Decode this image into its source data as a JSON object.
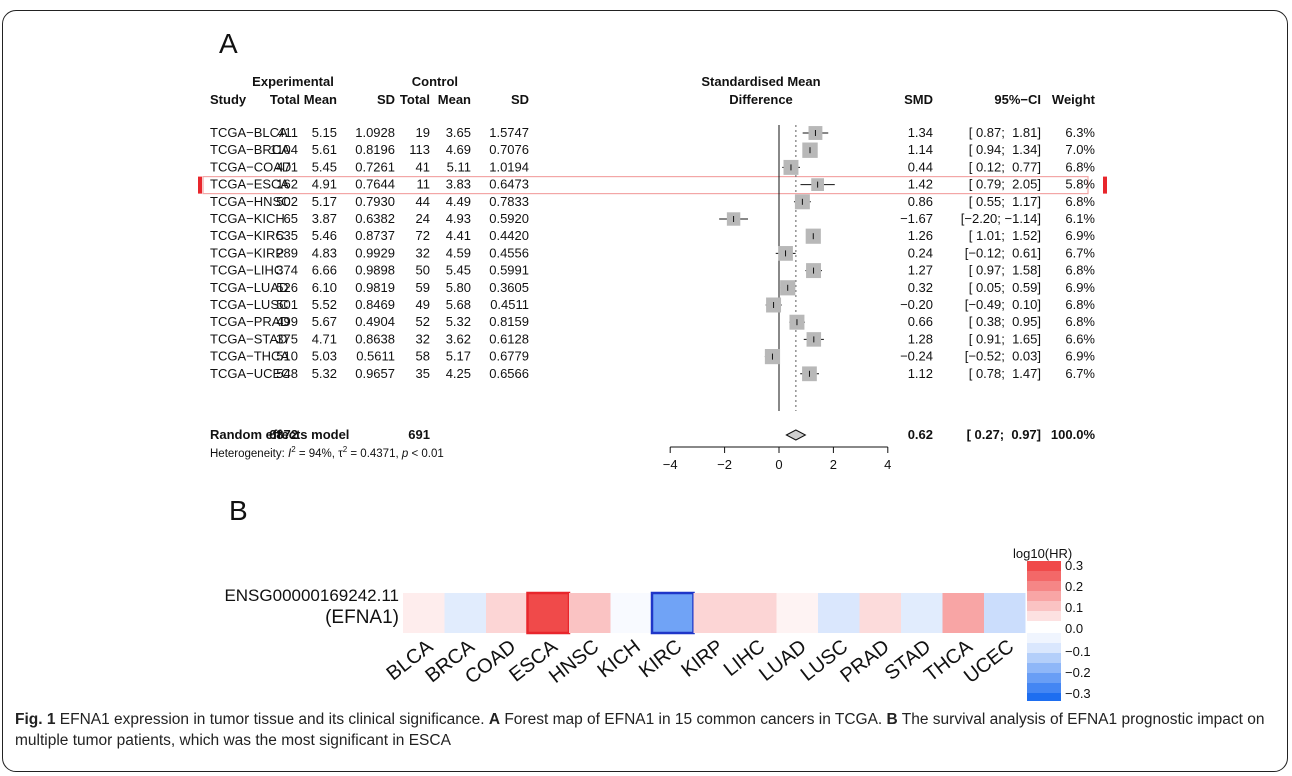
{
  "panel_labels": {
    "a": "A",
    "b": "B"
  },
  "forest": {
    "headers": {
      "study": "Study",
      "experimental": "Experimental",
      "control": "Control",
      "total": "Total",
      "mean": "Mean",
      "sd": "SD",
      "smd_title_1": "Standardised Mean",
      "smd_title_2": "Difference",
      "smd": "SMD",
      "ci": "95%−CI",
      "weight": "Weight"
    },
    "highlight_study": "TCGA−ESCA",
    "highlight_color": "#e8262c",
    "summary": {
      "label": "Random effects model",
      "exp_total": "6872",
      "ctrl_total": "691",
      "smd": "0.62",
      "ci": "[ 0.27;  0.97]",
      "weight": "100.0%"
    },
    "heterogeneity_label": "Heterogeneity:",
    "heterogeneity_i2": "= 94%,",
    "heterogeneity_tau2": "= 0.4371,",
    "heterogeneity_p": "< 0.01"
  },
  "chart_data": [
    {
      "type": "forest",
      "xlim": [
        -4,
        4
      ],
      "xticks": [
        "−4",
        "−2",
        "0",
        "2",
        "4"
      ],
      "reference_line": 0,
      "pooled_estimate": 0.62,
      "pooled_ci": [
        0.27,
        0.97
      ],
      "studies": [
        {
          "study": "TCGA−BLCA",
          "exp_total": "411",
          "exp_mean": "5.15",
          "exp_sd": "1.0928",
          "ctrl_total": "19",
          "ctrl_mean": "3.65",
          "ctrl_sd": "1.5747",
          "smd": 1.34,
          "lo": 0.87,
          "hi": 1.81,
          "smd_text": "1.34",
          "ci_text": "[ 0.87;  1.81]",
          "weight": "6.3%"
        },
        {
          "study": "TCGA−BRCA",
          "exp_total": "1104",
          "exp_mean": "5.61",
          "exp_sd": "0.8196",
          "ctrl_total": "113",
          "ctrl_mean": "4.69",
          "ctrl_sd": "0.7076",
          "smd": 1.14,
          "lo": 0.94,
          "hi": 1.34,
          "smd_text": "1.14",
          "ci_text": "[ 0.94;  1.34]",
          "weight": "7.0%"
        },
        {
          "study": "TCGA−COAD",
          "exp_total": "471",
          "exp_mean": "5.45",
          "exp_sd": "0.7261",
          "ctrl_total": "41",
          "ctrl_mean": "5.11",
          "ctrl_sd": "1.0194",
          "smd": 0.44,
          "lo": 0.12,
          "hi": 0.77,
          "smd_text": "0.44",
          "ci_text": "[ 0.12;  0.77]",
          "weight": "6.8%"
        },
        {
          "study": "TCGA−ESCA",
          "exp_total": "162",
          "exp_mean": "4.91",
          "exp_sd": "0.7644",
          "ctrl_total": "11",
          "ctrl_mean": "3.83",
          "ctrl_sd": "0.6473",
          "smd": 1.42,
          "lo": 0.79,
          "hi": 2.05,
          "smd_text": "1.42",
          "ci_text": "[ 0.79;  2.05]",
          "weight": "5.8%"
        },
        {
          "study": "TCGA−HNSC",
          "exp_total": "502",
          "exp_mean": "5.17",
          "exp_sd": "0.7930",
          "ctrl_total": "44",
          "ctrl_mean": "4.49",
          "ctrl_sd": "0.7833",
          "smd": 0.86,
          "lo": 0.55,
          "hi": 1.17,
          "smd_text": "0.86",
          "ci_text": "[ 0.55;  1.17]",
          "weight": "6.8%"
        },
        {
          "study": "TCGA−KICH",
          "exp_total": "65",
          "exp_mean": "3.87",
          "exp_sd": "0.6382",
          "ctrl_total": "24",
          "ctrl_mean": "4.93",
          "ctrl_sd": "0.5920",
          "smd": -1.67,
          "lo": -2.2,
          "hi": -1.14,
          "smd_text": "−1.67",
          "ci_text": "[−2.20; −1.14]",
          "weight": "6.1%"
        },
        {
          "study": "TCGA−KIRC",
          "exp_total": "535",
          "exp_mean": "5.46",
          "exp_sd": "0.8737",
          "ctrl_total": "72",
          "ctrl_mean": "4.41",
          "ctrl_sd": "0.4420",
          "smd": 1.26,
          "lo": 1.01,
          "hi": 1.52,
          "smd_text": "1.26",
          "ci_text": "[ 1.01;  1.52]",
          "weight": "6.9%"
        },
        {
          "study": "TCGA−KIRP",
          "exp_total": "289",
          "exp_mean": "4.83",
          "exp_sd": "0.9929",
          "ctrl_total": "32",
          "ctrl_mean": "4.59",
          "ctrl_sd": "0.4556",
          "smd": 0.24,
          "lo": -0.12,
          "hi": 0.61,
          "smd_text": "0.24",
          "ci_text": "[−0.12;  0.61]",
          "weight": "6.7%"
        },
        {
          "study": "TCGA−LIHC",
          "exp_total": "374",
          "exp_mean": "6.66",
          "exp_sd": "0.9898",
          "ctrl_total": "50",
          "ctrl_mean": "5.45",
          "ctrl_sd": "0.5991",
          "smd": 1.27,
          "lo": 0.97,
          "hi": 1.58,
          "smd_text": "1.27",
          "ci_text": "[ 0.97;  1.58]",
          "weight": "6.8%"
        },
        {
          "study": "TCGA−LUAD",
          "exp_total": "526",
          "exp_mean": "6.10",
          "exp_sd": "0.9819",
          "ctrl_total": "59",
          "ctrl_mean": "5.80",
          "ctrl_sd": "0.3605",
          "smd": 0.32,
          "lo": 0.05,
          "hi": 0.59,
          "smd_text": "0.32",
          "ci_text": "[ 0.05;  0.59]",
          "weight": "6.9%"
        },
        {
          "study": "TCGA−LUSC",
          "exp_total": "501",
          "exp_mean": "5.52",
          "exp_sd": "0.8469",
          "ctrl_total": "49",
          "ctrl_mean": "5.68",
          "ctrl_sd": "0.4511",
          "smd": -0.2,
          "lo": -0.49,
          "hi": 0.1,
          "smd_text": "−0.20",
          "ci_text": "[−0.49;  0.10]",
          "weight": "6.8%"
        },
        {
          "study": "TCGA−PRAD",
          "exp_total": "499",
          "exp_mean": "5.67",
          "exp_sd": "0.4904",
          "ctrl_total": "52",
          "ctrl_mean": "5.32",
          "ctrl_sd": "0.8159",
          "smd": 0.66,
          "lo": 0.38,
          "hi": 0.95,
          "smd_text": "0.66",
          "ci_text": "[ 0.38;  0.95]",
          "weight": "6.8%"
        },
        {
          "study": "TCGA−STAD",
          "exp_total": "375",
          "exp_mean": "4.71",
          "exp_sd": "0.8638",
          "ctrl_total": "32",
          "ctrl_mean": "3.62",
          "ctrl_sd": "0.6128",
          "smd": 1.28,
          "lo": 0.91,
          "hi": 1.65,
          "smd_text": "1.28",
          "ci_text": "[ 0.91;  1.65]",
          "weight": "6.6%"
        },
        {
          "study": "TCGA−THCA",
          "exp_total": "510",
          "exp_mean": "5.03",
          "exp_sd": "0.5611",
          "ctrl_total": "58",
          "ctrl_mean": "5.17",
          "ctrl_sd": "0.6779",
          "smd": -0.24,
          "lo": -0.52,
          "hi": 0.03,
          "smd_text": "−0.24",
          "ci_text": "[−0.52;  0.03]",
          "weight": "6.9%"
        },
        {
          "study": "TCGA−UCEC",
          "exp_total": "548",
          "exp_mean": "5.32",
          "exp_sd": "0.9657",
          "ctrl_total": "35",
          "ctrl_mean": "4.25",
          "ctrl_sd": "0.6566",
          "smd": 1.12,
          "lo": 0.78,
          "hi": 1.47,
          "smd_text": "1.12",
          "ci_text": "[ 0.78;  1.47]",
          "weight": "6.7%"
        }
      ]
    },
    {
      "type": "heatmap",
      "row_label_1": "ENSG00000169242.11",
      "row_label_2": "(EFNA1)",
      "categories": [
        "BLCA",
        "BRCA",
        "COAD",
        "ESCA",
        "HNSC",
        "KICH",
        "KIRC",
        "KIRP",
        "LIHC",
        "LUAD",
        "LUSC",
        "PRAD",
        "STAD",
        "THCA",
        "UCEC"
      ],
      "values": [
        0.03,
        -0.04,
        0.07,
        0.3,
        0.1,
        -0.01,
        -0.19,
        0.07,
        0.07,
        0.02,
        -0.05,
        0.06,
        -0.04,
        0.15,
        -0.07
      ],
      "highlighted": [
        "ESCA",
        "KIRC"
      ],
      "highlight_colors": {
        "ESCA": "#e8262c",
        "KIRC": "#1f36c8"
      },
      "legend_title": "log10(HR)",
      "legend_ticks": [
        "0.3",
        "0.2",
        "0.1",
        "0.0",
        "−0.1",
        "−0.2",
        "−0.3"
      ],
      "value_range": [
        -0.3,
        0.3
      ],
      "colors": {
        "positive": "#f04a4a",
        "negative": "#1e6ef0",
        "neutral": "#ffffff"
      }
    }
  ],
  "caption": {
    "fig_label": "Fig. 1",
    "text_1": "EFNA1 expression in tumor tissue and its clinical significance.",
    "label_a": "A",
    "text_a": "Forest map of EFNA1 in 15 common cancers in TCGA.",
    "label_b": "B",
    "text_b": "The survival analysis of EFNA1 prognostic impact on multiple tumor patients, which was the most significant in ESCA"
  }
}
